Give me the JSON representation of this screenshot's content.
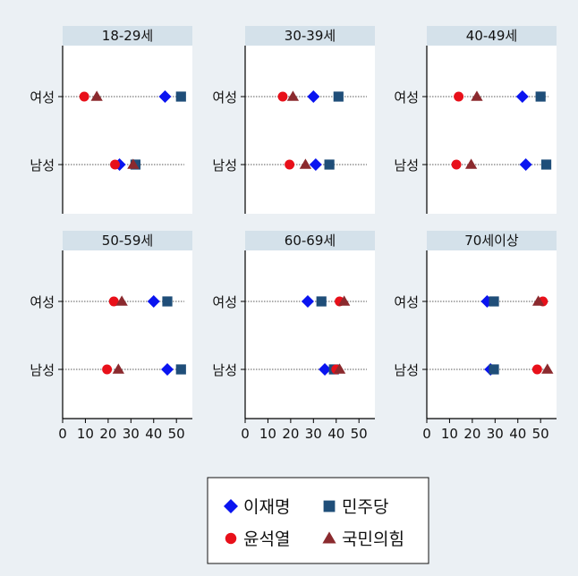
{
  "chart_data": {
    "type": "scatter",
    "xlim": [
      0,
      57
    ],
    "xticks": [
      "0",
      "10",
      "20",
      "30",
      "40",
      "50"
    ],
    "rows": [
      "여성",
      "남성"
    ],
    "series": [
      {
        "name": "이재명",
        "marker": "diamond",
        "color": "#0a14f0"
      },
      {
        "name": "민주당",
        "marker": "square",
        "color": "#1f4e79"
      },
      {
        "name": "윤석열",
        "marker": "circle",
        "color": "#e8101a"
      },
      {
        "name": "국민의힘",
        "marker": "triangle",
        "color": "#8b2a2e"
      }
    ],
    "panels": [
      {
        "title": "18-29세",
        "values": {
          "여성": [
            45,
            52,
            9.5,
            15
          ],
          "남성": [
            25,
            32,
            23,
            31
          ]
        }
      },
      {
        "title": "30-39세",
        "values": {
          "여성": [
            30,
            41,
            16.5,
            21
          ],
          "남성": [
            31,
            37,
            19.5,
            26.5
          ]
        }
      },
      {
        "title": "40-49세",
        "values": {
          "여성": [
            42,
            50,
            14,
            22
          ],
          "남성": [
            43.5,
            52.5,
            13,
            19.5
          ]
        }
      },
      {
        "title": "50-59세",
        "values": {
          "여성": [
            40,
            46,
            22.5,
            26
          ],
          "남성": [
            46,
            52,
            19.5,
            24.5
          ]
        }
      },
      {
        "title": "60-69세",
        "values": {
          "여성": [
            27.5,
            33.5,
            41.5,
            43.5
          ],
          "남성": [
            35,
            39,
            40,
            41.5
          ]
        }
      },
      {
        "title": "70세이상",
        "values": {
          "여성": [
            26.5,
            29.5,
            51,
            49
          ],
          "남성": [
            28,
            29.5,
            48.5,
            53
          ]
        }
      }
    ]
  }
}
